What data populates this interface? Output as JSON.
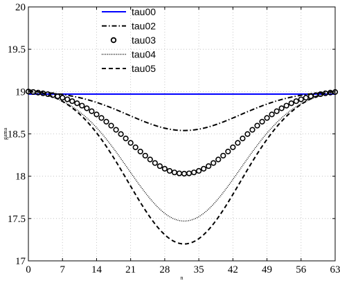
{
  "chart_data": {
    "type": "line",
    "title": "",
    "xlabel": "n",
    "ylabel": "gama",
    "xlim": [
      0,
      63
    ],
    "ylim": [
      17,
      20
    ],
    "xticks": [
      0,
      7,
      14,
      21,
      28,
      35,
      42,
      49,
      56,
      63
    ],
    "xtick_labels": [
      "0",
      "7",
      "14",
      "21",
      "28",
      "35",
      "42",
      "49",
      "56",
      "63"
    ],
    "yticks": [
      17,
      17.5,
      18,
      18.5,
      19,
      19.5,
      20
    ],
    "ytick_labels": [
      "17",
      "17.5",
      "18",
      "18.5",
      "19",
      "19.5",
      "20"
    ],
    "grid": true,
    "legend_position": "top-left",
    "series": [
      {
        "name": "tau00",
        "style": "solid",
        "color": "#0000ff",
        "min": 18.97,
        "edge": 18.97,
        "center": 32
      },
      {
        "name": "tau02",
        "style": "dashdot",
        "color": "#000000",
        "min": 18.54,
        "edge": 19.0,
        "center": 32
      },
      {
        "name": "tau03",
        "style": "circles",
        "color": "#000000",
        "min": 18.03,
        "edge": 19.0,
        "center": 32
      },
      {
        "name": "tau04",
        "style": "dotted",
        "color": "#000000",
        "min": 17.47,
        "edge": 19.0,
        "center": 32
      },
      {
        "name": "tau05",
        "style": "dashed",
        "color": "#000000",
        "min": 17.2,
        "edge": 19.02,
        "center": 32
      }
    ]
  }
}
